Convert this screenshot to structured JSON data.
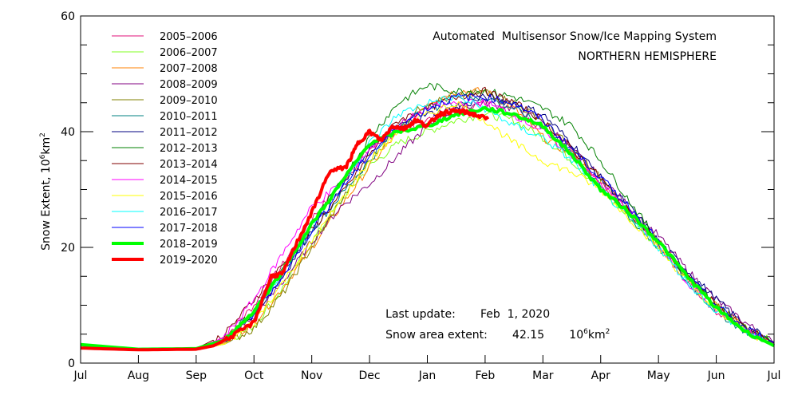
{
  "chart_data": {
    "type": "line",
    "title": "Automated  Multisensor Snow/Ice Mapping System",
    "subtitle": "NORTHERN HEMISPHERE",
    "xlabel": "",
    "ylabel": "Snow Extent, 10⁶km²",
    "ylabel_main": "Snow Extent, 10",
    "ylabel_sup": "6",
    "ylabel_unit": "km",
    "ylabel_unit_sup": "2",
    "ylim": [
      0,
      60
    ],
    "y_ticks": [
      0,
      20,
      40,
      60
    ],
    "y_minor_step": 5,
    "x_unit": "months since Jul 1",
    "xlim": [
      0,
      12
    ],
    "x_tick_labels": [
      "Jul",
      "Aug",
      "Sep",
      "Oct",
      "Nov",
      "Dec",
      "Jan",
      "Feb",
      "Mar",
      "Apr",
      "May",
      "Jun",
      "Jul"
    ],
    "grid": false,
    "legend_position": "top-left",
    "annotations": {
      "last_update_label": "Last update:",
      "last_update_value": "Feb  1, 2020",
      "extent_label": "Snow area extent:",
      "extent_value": "42.15",
      "extent_unit_base": "10",
      "extent_unit_sup": "6",
      "extent_unit": "km",
      "extent_unit_sup2": "2"
    },
    "series": [
      {
        "name": "2005–2006",
        "color": "#e0107a",
        "width": 1,
        "x": [
          0,
          1,
          2,
          2.5,
          3,
          3.5,
          4,
          4.5,
          5,
          5.5,
          6,
          6.5,
          7,
          7.5,
          8,
          8.5,
          9,
          9.5,
          10,
          10.5,
          11,
          11.5,
          12
        ],
        "values": [
          3,
          2.4,
          2.5,
          4.5,
          10,
          17,
          25,
          31,
          37,
          40,
          42,
          44,
          45,
          43,
          41,
          37,
          31,
          26,
          20,
          14,
          9,
          5.5,
          3.3
        ]
      },
      {
        "name": "2006–2007",
        "color": "#80ff20",
        "width": 1,
        "x": [
          0,
          1,
          2,
          2.5,
          3,
          3.5,
          4,
          4.5,
          5,
          5.5,
          6,
          6.5,
          7,
          7.5,
          8,
          8.5,
          9,
          9.5,
          10,
          10.5,
          11,
          11.5,
          12
        ],
        "values": [
          3,
          2.3,
          2.3,
          3.5,
          6.5,
          13,
          21,
          28,
          34,
          38,
          40,
          42,
          43,
          42,
          39,
          35,
          30,
          25,
          20,
          15,
          10,
          6,
          3.6
        ]
      },
      {
        "name": "2007–2008",
        "color": "#ff8000",
        "width": 1,
        "x": [
          0,
          1,
          2,
          2.5,
          3,
          3.5,
          4,
          4.5,
          5,
          5.5,
          6,
          6.5,
          7,
          7.5,
          8,
          8.5,
          9,
          9.5,
          10,
          10.5,
          11,
          11.5,
          12
        ],
        "values": [
          3,
          2.3,
          2.4,
          3.5,
          7,
          13,
          20,
          27,
          34,
          40,
          45,
          47,
          47,
          44,
          39,
          36,
          31,
          26,
          21,
          15,
          10,
          6,
          3.4
        ]
      },
      {
        "name": "2008–2009",
        "color": "#800080",
        "width": 1,
        "x": [
          0,
          1,
          2,
          2.5,
          3,
          3.5,
          4,
          4.5,
          5,
          5.5,
          6,
          6.5,
          7,
          7.5,
          8,
          8.5,
          9,
          9.5,
          10,
          10.5,
          11,
          11.5,
          12
        ],
        "values": [
          3,
          2.3,
          2.4,
          3.8,
          8,
          14,
          21,
          27,
          31,
          36,
          41,
          44,
          45,
          44,
          42,
          37,
          32,
          27,
          22,
          16,
          11,
          7,
          3.6
        ]
      },
      {
        "name": "2009–2010",
        "color": "#808000",
        "width": 1,
        "x": [
          0,
          1,
          2,
          2.5,
          3,
          3.5,
          4,
          4.5,
          5,
          5.5,
          6,
          6.5,
          7,
          7.5,
          8,
          8.5,
          9,
          9.5,
          10,
          10.5,
          11,
          11.5,
          12
        ],
        "values": [
          3,
          2.3,
          2.3,
          3.3,
          6,
          12,
          20,
          28,
          35,
          41,
          45,
          46,
          47,
          45,
          42,
          37,
          32,
          26,
          21,
          15,
          10,
          6,
          3.4
        ]
      },
      {
        "name": "2010–2011",
        "color": "#008080",
        "width": 1,
        "x": [
          0,
          1,
          2,
          2.5,
          3,
          3.5,
          4,
          4.5,
          5,
          5.5,
          6,
          6.5,
          7,
          7.5,
          8,
          8.5,
          9,
          9.5,
          10,
          10.5,
          11,
          11.5,
          12
        ],
        "values": [
          3,
          2.3,
          2.4,
          4,
          9,
          16,
          23,
          29,
          35,
          41,
          44,
          45,
          46,
          44,
          41,
          36,
          31,
          25,
          20,
          14,
          9,
          5.5,
          3.2
        ]
      },
      {
        "name": "2011–2012",
        "color": "#000080",
        "width": 1,
        "x": [
          0,
          1,
          2,
          2.5,
          3,
          3.5,
          4,
          4.5,
          5,
          5.5,
          6,
          6.5,
          7,
          7.5,
          8,
          8.5,
          9,
          9.5,
          10,
          10.5,
          11,
          11.5,
          12
        ],
        "values": [
          3,
          2.3,
          2.4,
          3.8,
          8.5,
          15,
          23,
          30,
          37,
          41,
          43,
          44,
          46,
          45,
          43,
          38,
          32,
          27,
          21,
          16,
          11,
          6.5,
          3.5
        ]
      },
      {
        "name": "2012–2013",
        "color": "#008000",
        "width": 1,
        "x": [
          0,
          1,
          2,
          2.5,
          3,
          3.5,
          4,
          4.5,
          5,
          5.5,
          6,
          6.5,
          7,
          7.5,
          8,
          8.5,
          9,
          9.5,
          10,
          10.5,
          11,
          11.5,
          12
        ],
        "values": [
          3,
          2.3,
          2.4,
          4,
          9,
          16,
          24,
          31,
          39,
          45,
          48,
          47,
          47,
          46,
          44,
          41,
          35,
          28,
          21,
          15,
          10,
          6,
          3.4
        ]
      },
      {
        "name": "2013–2014",
        "color": "#800000",
        "width": 1,
        "x": [
          0,
          1,
          2,
          2.5,
          3,
          3.5,
          4,
          4.5,
          5,
          5.5,
          6,
          6.5,
          7,
          7.5,
          8,
          8.5,
          9,
          9.5,
          10,
          10.5,
          11,
          11.5,
          12
        ],
        "values": [
          3,
          2.3,
          2.5,
          5,
          11,
          17,
          23,
          29,
          36,
          42,
          44,
          46,
          47,
          45,
          42,
          37,
          32,
          26,
          21,
          15,
          10,
          6,
          3.4
        ]
      },
      {
        "name": "2014–2015",
        "color": "#ff00ff",
        "width": 1,
        "x": [
          0,
          1,
          2,
          2.5,
          3,
          3.5,
          4,
          4.5,
          5,
          5.5,
          6,
          6.5,
          7,
          7.5,
          8,
          8.5,
          9,
          9.5,
          10,
          10.5,
          11,
          11.5,
          12
        ],
        "values": [
          3,
          2.3,
          2.5,
          4.5,
          11,
          19,
          27,
          31,
          37,
          41,
          44,
          45,
          45,
          43,
          40,
          36,
          31,
          26,
          20,
          14,
          9.5,
          5.5,
          3.3
        ]
      },
      {
        "name": "2015–2016",
        "color": "#ffff00",
        "width": 1,
        "x": [
          0,
          1,
          2,
          2.5,
          3,
          3.5,
          4,
          4.5,
          5,
          5.5,
          6,
          6.5,
          7,
          7.5,
          8,
          8.5,
          9,
          9.5,
          10,
          10.5,
          11,
          11.5,
          12
        ],
        "values": [
          3,
          2.3,
          2.3,
          3.3,
          7,
          14,
          21,
          28,
          35,
          40,
          43,
          45,
          42,
          38,
          35,
          33,
          30,
          25,
          20,
          14,
          9,
          5.5,
          3.2
        ]
      },
      {
        "name": "2016–2017",
        "color": "#00ffff",
        "width": 1,
        "x": [
          0,
          1,
          2,
          2.5,
          3,
          3.5,
          4,
          4.5,
          5,
          5.5,
          6,
          6.5,
          7,
          7.5,
          8,
          8.5,
          9,
          9.5,
          10,
          10.5,
          11,
          11.5,
          12
        ],
        "values": [
          3,
          2.3,
          2.4,
          3.7,
          9,
          16,
          24,
          31,
          38,
          43,
          45,
          46,
          44,
          41,
          39,
          35,
          30,
          25,
          20,
          14,
          9,
          5.5,
          3.2
        ]
      },
      {
        "name": "2017–2018",
        "color": "#0000ff",
        "width": 1,
        "x": [
          0,
          1,
          2,
          2.5,
          3,
          3.5,
          4,
          4.5,
          5,
          5.5,
          6,
          6.5,
          7,
          7.5,
          8,
          8.5,
          9,
          9.5,
          10,
          10.5,
          11,
          11.5,
          12
        ],
        "values": [
          3,
          2.3,
          2.4,
          3.8,
          8.5,
          15,
          23,
          30,
          36,
          41,
          44,
          46,
          46,
          45,
          42,
          37,
          32,
          27,
          21,
          15,
          10,
          6,
          3.5
        ]
      },
      {
        "name": "2018–2019",
        "color": "#00ff00",
        "width": 4,
        "x": [
          0,
          1,
          2,
          2.5,
          3,
          3.5,
          4,
          4.5,
          5,
          5.5,
          6,
          6.5,
          7,
          7.5,
          8,
          8.5,
          9,
          9.5,
          10,
          10.5,
          11,
          11.5,
          12
        ],
        "values": [
          3.2,
          2.4,
          2.5,
          4,
          9,
          16,
          24,
          31,
          38,
          40,
          41,
          43,
          44,
          43,
          41,
          36,
          30,
          26,
          21,
          15,
          9.5,
          5.5,
          3.0
        ]
      },
      {
        "name": "2019–2020",
        "color": "#ff0000",
        "width": 4,
        "x": [
          0,
          1,
          2,
          2.3,
          2.6,
          3,
          3.3,
          3.5,
          3.7,
          4,
          4.3,
          4.6,
          4.8,
          5,
          5.2,
          5.4,
          5.6,
          5.8,
          6,
          6.2,
          6.4,
          6.6,
          6.8,
          7.05
        ],
        "values": [
          2.6,
          2.3,
          2.4,
          3,
          4.5,
          7,
          15,
          15.5,
          20,
          26,
          33,
          34,
          38,
          40,
          38.5,
          41,
          40.5,
          42,
          41,
          43,
          43.5,
          43.5,
          43,
          42.15
        ]
      }
    ]
  }
}
